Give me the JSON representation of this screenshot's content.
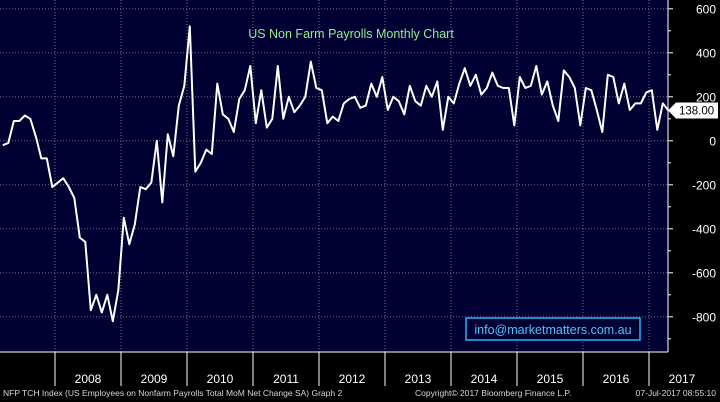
{
  "colors": {
    "plot_background": "#000033",
    "page_background": "#000000",
    "line": "#ffffff",
    "title": "#8ef08e",
    "email_text": "#4fc3f7",
    "email_border": "#29b6f6",
    "grid": "#6f6f86",
    "axis_text": "#ffffff",
    "last_value_bg": "#ffffff",
    "last_value_text": "#000000"
  },
  "footer": {
    "left": "NFP TCH Index (US Employees on Nonfarm Payrolls Total MoM Net Change SA) Graph 2",
    "copyright": "Copyright© 2017 Bloomberg Finance L.P.",
    "timestamp": "07-Jul-2017 08:55:10"
  },
  "email": "info@marketmatters.com.au",
  "chart_data": {
    "type": "line",
    "title": "US Non Farm Payrolls Monthly Chart",
    "xlabel": "",
    "ylabel": "",
    "ylim": [
      -960,
      640
    ],
    "yticks": [
      -800,
      -600,
      -400,
      -200,
      0,
      200,
      400,
      600
    ],
    "ytick_labels": [
      "-800",
      "-600",
      "-400",
      "-200",
      "0",
      "200",
      "400",
      "600"
    ],
    "grid": true,
    "y_axis_side": "right",
    "years": [
      "2008",
      "2009",
      "2010",
      "2011",
      "2012",
      "2013",
      "2014",
      "2015",
      "2016",
      "2017"
    ],
    "last_value_label": "138.00",
    "series": [
      {
        "start": "2007-03",
        "values": [
          -20,
          -10,
          90,
          90,
          115,
          100,
          20,
          -80,
          -80,
          -210,
          -190,
          -170,
          -210,
          -260,
          -440,
          -460,
          -770,
          -700,
          -780,
          -700,
          -820,
          -680,
          -350,
          -470,
          -380,
          -210,
          -220,
          -190,
          0,
          -280,
          30,
          -70,
          160,
          250,
          520,
          -140,
          -100,
          -40,
          -60,
          260,
          120,
          100,
          40,
          190,
          230,
          340,
          80,
          230,
          60,
          100,
          340,
          100,
          200,
          130,
          160,
          200,
          360,
          240,
          230,
          80,
          110,
          90,
          170,
          190,
          200,
          150,
          160,
          260,
          200,
          290,
          140,
          200,
          180,
          120,
          250,
          180,
          160,
          250,
          200,
          270,
          50,
          200,
          170,
          260,
          330,
          250,
          300,
          210,
          240,
          310,
          250,
          240,
          240,
          70,
          290,
          240,
          250,
          340,
          210,
          270,
          160,
          90,
          320,
          290,
          240,
          70,
          240,
          230,
          140,
          40,
          300,
          290,
          170,
          260,
          140,
          170,
          170,
          220,
          230,
          50,
          170,
          138
        ]
      }
    ]
  }
}
